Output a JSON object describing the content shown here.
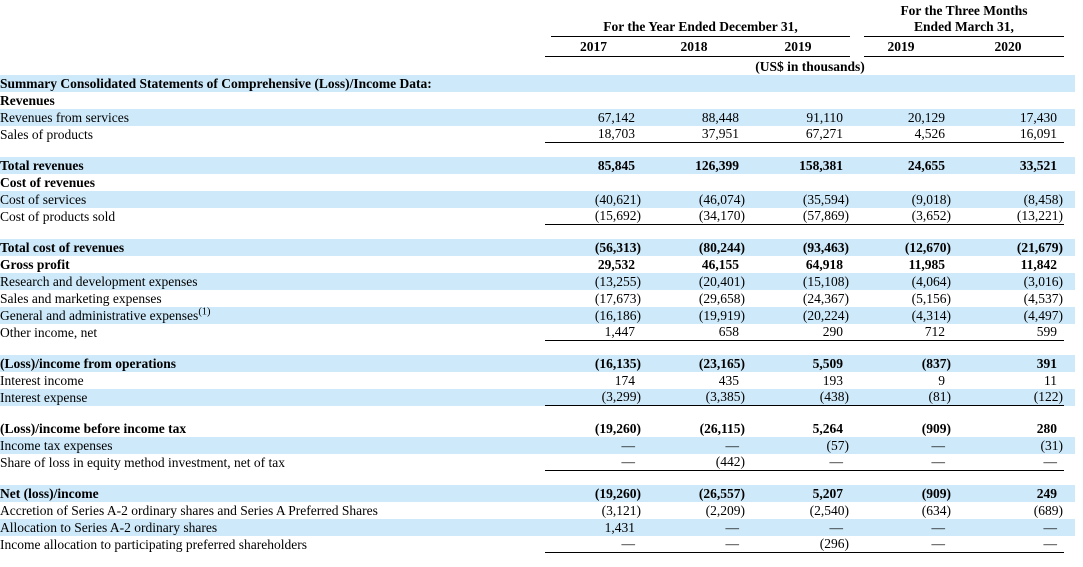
{
  "colors": {
    "row_highlight": "#CEE9F9",
    "text": "#000000",
    "rule": "#000000"
  },
  "table": {
    "col_groups": [
      {
        "label": "For the Year Ended December 31,",
        "cols": [
          "2017",
          "2018",
          "2019"
        ]
      },
      {
        "label_line1": "For the Three Months",
        "label_line2": "Ended March 31,",
        "cols": [
          "2019",
          "2020"
        ]
      }
    ],
    "units_note": "(US$ in thousands)",
    "rows": [
      {
        "label": "Summary Consolidated Statements of Comprehensive (Loss)/Income Data:",
        "bold": true,
        "highlight": true,
        "values": [
          "",
          "",
          "",
          "",
          ""
        ]
      },
      {
        "label": "Revenues",
        "bold": true,
        "highlight": false,
        "values": [
          "",
          "",
          "",
          "",
          ""
        ]
      },
      {
        "label": "Revenues from services",
        "highlight": true,
        "values": [
          "67,142",
          "88,448",
          "91,110",
          "20,129",
          "17,430"
        ]
      },
      {
        "label": "Sales of products",
        "highlight": false,
        "underline": true,
        "values": [
          "18,703",
          "37,951",
          "67,271",
          "4,526",
          "16,091"
        ]
      },
      {
        "spacer": true
      },
      {
        "label": "Total revenues",
        "bold": true,
        "highlight": true,
        "values": [
          "85,845",
          "126,399",
          "158,381",
          "24,655",
          "33,521"
        ]
      },
      {
        "label": "Cost of revenues",
        "bold": true,
        "highlight": false,
        "values": [
          "",
          "",
          "",
          "",
          ""
        ]
      },
      {
        "label": "Cost of services",
        "highlight": true,
        "values": [
          "(40,621)",
          "(46,074)",
          "(35,594)",
          "(9,018)",
          "(8,458)"
        ]
      },
      {
        "label": "Cost of products sold",
        "highlight": false,
        "underline": true,
        "values": [
          "(15,692)",
          "(34,170)",
          "(57,869)",
          "(3,652)",
          "(13,221)"
        ]
      },
      {
        "spacer": true
      },
      {
        "label": "Total cost of revenues",
        "bold": true,
        "highlight": true,
        "values": [
          "(56,313)",
          "(80,244)",
          "(93,463)",
          "(12,670)",
          "(21,679)"
        ]
      },
      {
        "label": "Gross profit",
        "bold": true,
        "highlight": false,
        "values": [
          "29,532",
          "46,155",
          "64,918",
          "11,985",
          "11,842"
        ]
      },
      {
        "label": "Research and development expenses",
        "highlight": true,
        "values": [
          "(13,255)",
          "(20,401)",
          "(15,108)",
          "(4,064)",
          "(3,016)"
        ]
      },
      {
        "label": "Sales and marketing expenses",
        "highlight": false,
        "values": [
          "(17,673)",
          "(29,658)",
          "(24,367)",
          "(5,156)",
          "(4,537)"
        ]
      },
      {
        "label": "General and administrative expenses",
        "sup": "(1)",
        "highlight": true,
        "values": [
          "(16,186)",
          "(19,919)",
          "(20,224)",
          "(4,314)",
          "(4,497)"
        ]
      },
      {
        "label": "Other income, net",
        "highlight": false,
        "underline": true,
        "values": [
          "1,447",
          "658",
          "290",
          "712",
          "599"
        ]
      },
      {
        "spacer": true
      },
      {
        "label": "(Loss)/income from operations",
        "bold": true,
        "highlight": true,
        "values": [
          "(16,135)",
          "(23,165)",
          "5,509",
          "(837)",
          "391"
        ]
      },
      {
        "label": "Interest income",
        "highlight": false,
        "values": [
          "174",
          "435",
          "193",
          "9",
          "11"
        ]
      },
      {
        "label": "Interest expense",
        "highlight": true,
        "underline": true,
        "values": [
          "(3,299)",
          "(3,385)",
          "(438)",
          "(81)",
          "(122)"
        ]
      },
      {
        "spacer": true
      },
      {
        "label": "(Loss)/income before income tax",
        "bold": true,
        "highlight": false,
        "values": [
          "(19,260)",
          "(26,115)",
          "5,264",
          "(909)",
          "280"
        ]
      },
      {
        "label": "Income tax expenses",
        "highlight": true,
        "values": [
          "—",
          "—",
          "(57)",
          "—",
          "(31)"
        ]
      },
      {
        "label": "Share of loss in equity method investment, net of tax",
        "highlight": false,
        "underline": true,
        "values": [
          "—",
          "(442)",
          "—",
          "—",
          "—"
        ]
      },
      {
        "spacer": true
      },
      {
        "label": "Net (loss)/income",
        "bold": true,
        "highlight": true,
        "values": [
          "(19,260)",
          "(26,557)",
          "5,207",
          "(909)",
          "249"
        ]
      },
      {
        "label": "Accretion of Series A-2 ordinary shares and Series A Preferred Shares",
        "highlight": false,
        "values": [
          "(3,121)",
          "(2,209)",
          "(2,540)",
          "(634)",
          "(689)"
        ]
      },
      {
        "label": "Allocation to Series A-2 ordinary shares",
        "highlight": true,
        "values": [
          "1,431",
          "—",
          "—",
          "—",
          "—"
        ]
      },
      {
        "label": "Income allocation to participating preferred shareholders",
        "highlight": false,
        "underline": true,
        "values": [
          "—",
          "—",
          "(296)",
          "—",
          "—"
        ]
      }
    ]
  }
}
